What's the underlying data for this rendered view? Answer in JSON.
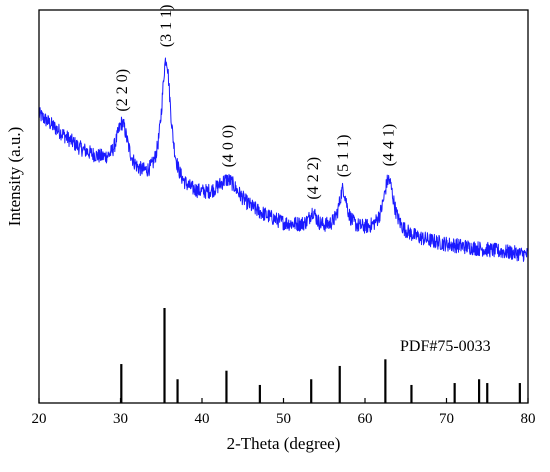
{
  "chart_data": {
    "type": "line",
    "xlabel": "2-Theta (degree)",
    "ylabel": "Intensity (a.u.)",
    "xlim": [
      20,
      80
    ],
    "x_ticks": [
      20,
      30,
      40,
      50,
      60,
      70,
      80
    ],
    "grid": false,
    "colors": {
      "pattern": "#1a1aff",
      "reference": "#000000",
      "axis": "#000000"
    },
    "pattern": {
      "start_level": 0.7,
      "baseline": [
        [
          20,
          0.7
        ],
        [
          25,
          0.56
        ],
        [
          30,
          0.46
        ],
        [
          35,
          0.4
        ],
        [
          40,
          0.36
        ],
        [
          45,
          0.32
        ],
        [
          50,
          0.26
        ],
        [
          55,
          0.24
        ],
        [
          60,
          0.23
        ],
        [
          65,
          0.21
        ],
        [
          70,
          0.18
        ],
        [
          75,
          0.16
        ],
        [
          80,
          0.14
        ]
      ],
      "peaks": [
        {
          "x": 30.2,
          "label": "(2 2 0)",
          "height": 0.2,
          "width": 0.9
        },
        {
          "x": 35.6,
          "label": "(3 1 1)",
          "height": 0.52,
          "width": 0.7
        },
        {
          "x": 43.2,
          "label": "(4 0 0)",
          "height": 0.1,
          "width": 1.6
        },
        {
          "x": 53.6,
          "label": "(4 2 2)",
          "height": 0.06,
          "width": 0.5
        },
        {
          "x": 57.3,
          "label": "(5 1 1)",
          "height": 0.16,
          "width": 0.6
        },
        {
          "x": 62.9,
          "label": "(4 4 1)",
          "height": 0.22,
          "width": 0.8
        }
      ]
    },
    "reference": {
      "label": "PDF#75-0033",
      "lines": [
        {
          "x": 30.1,
          "intensity": 0.41
        },
        {
          "x": 35.4,
          "intensity": 1.0
        },
        {
          "x": 37.0,
          "intensity": 0.25
        },
        {
          "x": 43.0,
          "intensity": 0.34
        },
        {
          "x": 47.1,
          "intensity": 0.19
        },
        {
          "x": 53.4,
          "intensity": 0.25
        },
        {
          "x": 56.9,
          "intensity": 0.39
        },
        {
          "x": 62.5,
          "intensity": 0.46
        },
        {
          "x": 65.7,
          "intensity": 0.19
        },
        {
          "x": 71.0,
          "intensity": 0.21
        },
        {
          "x": 74.0,
          "intensity": 0.25
        },
        {
          "x": 75.0,
          "intensity": 0.21
        },
        {
          "x": 79.0,
          "intensity": 0.21
        }
      ]
    }
  }
}
